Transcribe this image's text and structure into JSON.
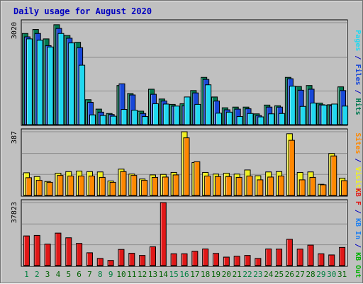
{
  "title": "Daily usage for August 2020",
  "colors": {
    "background": "#c0c0c0",
    "plot_background": "#c0c0c0",
    "title_text": "#0000c0",
    "weekday_label": "#006000",
    "weekend_label": "#008040",
    "hits": "#007850",
    "files": "#1848d8",
    "pages": "#20d8f0",
    "visits": "#f0f020",
    "sites": "#ff8800",
    "kbin": "#2080f0",
    "kbout": "#00b000",
    "kbf": "#e01818"
  },
  "chart_data": [
    {
      "type": "bar",
      "panel": "hits-files-pages",
      "title": "Daily usage for August 2020",
      "categories": [
        "1",
        "2",
        "3",
        "4",
        "5",
        "6",
        "7",
        "8",
        "9",
        "10",
        "11",
        "12",
        "13",
        "14",
        "15",
        "16",
        "17",
        "18",
        "19",
        "20",
        "21",
        "22",
        "23",
        "24",
        "25",
        "26",
        "27",
        "28",
        "29",
        "30",
        "31"
      ],
      "weekend_days": [
        "1",
        "2",
        "8",
        "9",
        "15",
        "16",
        "22",
        "23",
        "29",
        "30"
      ],
      "ylabel": "Pages / Files / Hits",
      "ylabel_parts": [
        {
          "text": "Pages",
          "color_key": "pages"
        },
        {
          "text": " / ",
          "color_key": "title_text"
        },
        {
          "text": "Files",
          "color_key": "files"
        },
        {
          "text": " / ",
          "color_key": "title_text"
        },
        {
          "text": "Hits",
          "color_key": "hits"
        }
      ],
      "max_label": "3020",
      "ylim": [
        0,
        3020
      ],
      "grid": true,
      "series": [
        {
          "name": "Hits",
          "color_key": "hits",
          "values": [
            2700,
            2820,
            2540,
            2960,
            2640,
            2440,
            740,
            460,
            330,
            1160,
            920,
            400,
            1050,
            760,
            600,
            620,
            1010,
            1400,
            820,
            500,
            520,
            520,
            320,
            580,
            560,
            1400,
            1130,
            1160,
            640,
            590,
            1120
          ]
        },
        {
          "name": "Files",
          "color_key": "files",
          "values": [
            2600,
            2700,
            2340,
            2850,
            2560,
            2280,
            660,
            370,
            300,
            1210,
            880,
            330,
            900,
            700,
            550,
            560,
            940,
            1340,
            700,
            440,
            460,
            470,
            270,
            520,
            520,
            1360,
            1020,
            1050,
            590,
            560,
            1010
          ]
        },
        {
          "name": "Pages",
          "color_key": "pages",
          "values": [
            2540,
            2500,
            2300,
            2700,
            2420,
            1760,
            290,
            270,
            250,
            450,
            430,
            240,
            620,
            610,
            550,
            820,
            600,
            1180,
            340,
            370,
            240,
            330,
            230,
            320,
            330,
            1140,
            540,
            640,
            580,
            610,
            550
          ]
        }
      ]
    },
    {
      "type": "bar",
      "panel": "visits-sites",
      "categories": [
        "1",
        "2",
        "3",
        "4",
        "5",
        "6",
        "7",
        "8",
        "9",
        "10",
        "11",
        "12",
        "13",
        "14",
        "15",
        "16",
        "17",
        "18",
        "19",
        "20",
        "21",
        "22",
        "23",
        "24",
        "25",
        "26",
        "27",
        "28",
        "29",
        "30",
        "31"
      ],
      "ylabel": "Sites / Visits",
      "ylabel_parts": [
        {
          "text": "Sites",
          "color_key": "sites"
        },
        {
          "text": " / ",
          "color_key": "title_text"
        },
        {
          "text": "Visits",
          "color_key": "visits"
        }
      ],
      "max_label": "387",
      "ylim": [
        0,
        387
      ],
      "grid": true,
      "series": [
        {
          "name": "Visits",
          "color_key": "visits",
          "values": [
            138,
            115,
            85,
            135,
            145,
            148,
            145,
            143,
            88,
            160,
            130,
            100,
            125,
            128,
            140,
            387,
            200,
            140,
            130,
            135,
            130,
            155,
            120,
            143,
            145,
            375,
            140,
            143,
            68,
            255,
            105
          ]
        },
        {
          "name": "Sites",
          "color_key": "sites",
          "values": [
            108,
            92,
            80,
            122,
            118,
            118,
            118,
            110,
            80,
            145,
            122,
            92,
            110,
            112,
            125,
            350,
            205,
            118,
            115,
            115,
            110,
            118,
            95,
            112,
            118,
            335,
            95,
            110,
            65,
            240,
            90
          ]
        }
      ]
    },
    {
      "type": "bar",
      "panel": "kbytes",
      "categories": [
        "1",
        "2",
        "3",
        "4",
        "5",
        "6",
        "7",
        "8",
        "9",
        "10",
        "11",
        "12",
        "13",
        "14",
        "15",
        "16",
        "17",
        "18",
        "19",
        "20",
        "21",
        "22",
        "23",
        "24",
        "25",
        "26",
        "27",
        "28",
        "29",
        "30",
        "31"
      ],
      "ylabel": "KB F / KB In / KB Out",
      "ylabel_parts": [
        {
          "text": "KB F",
          "color_key": "kbf"
        },
        {
          "text": " / ",
          "color_key": "title_text"
        },
        {
          "text": "KB In",
          "color_key": "kbin"
        },
        {
          "text": " / ",
          "color_key": "title_text"
        },
        {
          "text": "KB Out",
          "color_key": "kbout"
        }
      ],
      "max_label": "37823",
      "ylim": [
        0,
        37823
      ],
      "grid": true,
      "series": [
        {
          "name": "KB F",
          "color_key": "kbf",
          "values": [
            17800,
            18100,
            12900,
            19500,
            16700,
            13300,
            7700,
            4300,
            3100,
            9700,
            7400,
            6100,
            11300,
            37823,
            7100,
            7100,
            8600,
            10000,
            7300,
            5100,
            5600,
            6100,
            4300,
            10000,
            9900,
            15800,
            9900,
            12300,
            7100,
            6400,
            10900
          ]
        }
      ]
    }
  ]
}
